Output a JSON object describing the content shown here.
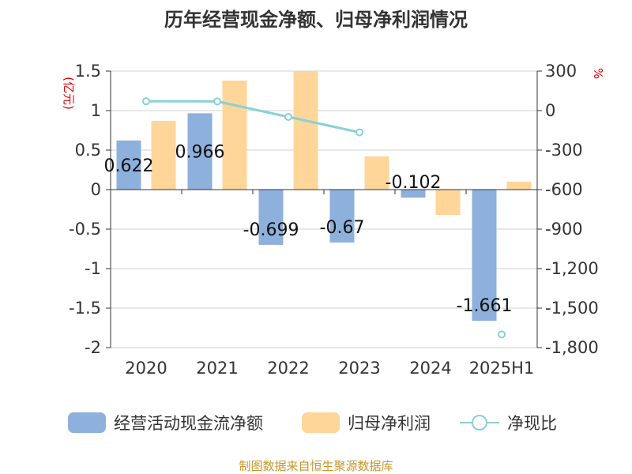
{
  "chart_data": {
    "type": "bar",
    "title": "历年经营现金净额、归母净利润情况",
    "categories": [
      "2020",
      "2021",
      "2022",
      "2023",
      "2024",
      "2025H1"
    ],
    "series": [
      {
        "name": "经营活动现金流净额",
        "type": "bar",
        "axis": "left",
        "color": "#8eb0dc",
        "values": [
          0.622,
          0.966,
          -0.699,
          -0.67,
          -0.102,
          -1.661
        ],
        "labels": [
          "0.622",
          "0.966",
          "-0.699",
          "-0.67",
          "-0.102",
          "-1.661"
        ]
      },
      {
        "name": "归母净利润",
        "type": "bar",
        "axis": "left",
        "color": "#fed699",
        "values": [
          0.87,
          1.38,
          1.5,
          0.42,
          -0.32,
          0.1
        ]
      },
      {
        "name": "净现比",
        "type": "line",
        "axis": "right",
        "color": "#89d0d8",
        "values": [
          71,
          70,
          -48,
          -165,
          null,
          -1700
        ]
      }
    ],
    "y_left": {
      "unit": "(亿元)",
      "min": -2,
      "max": 1.5,
      "ticks": [
        1.5,
        1,
        0.5,
        0,
        -0.5,
        -1,
        -1.5,
        -2
      ],
      "tick_labels": [
        "1.5",
        "1",
        "0.5",
        "0",
        "-0.5",
        "-1",
        "-1.5",
        "-2"
      ]
    },
    "y_right": {
      "unit": "%",
      "min": -1800,
      "max": 300,
      "ticks": [
        300,
        0,
        -300,
        -600,
        -900,
        -1200,
        -1500,
        -1800
      ],
      "tick_labels": [
        "300",
        "0",
        "-300",
        "-600",
        "-900",
        "-1,200",
        "-1,500",
        "-1,800"
      ]
    },
    "grid": true,
    "legend_position": "bottom"
  },
  "footer": {
    "source": "制图数据来自恒生聚源数据库"
  }
}
